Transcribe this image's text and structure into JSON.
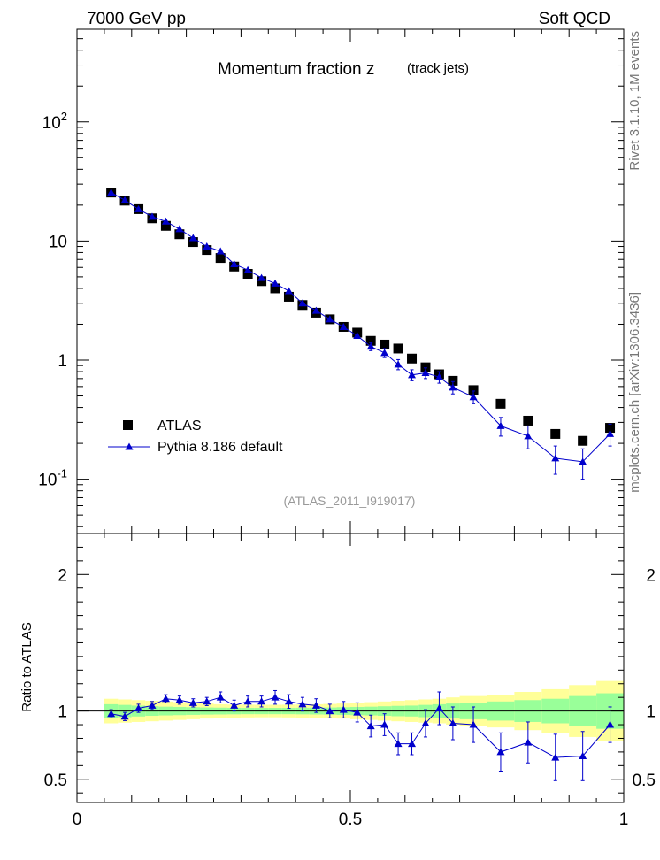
{
  "header": {
    "left": "7000 GeV pp",
    "right": "Soft QCD"
  },
  "title": {
    "main": "Momentum fraction z",
    "sub": "(track jets)"
  },
  "side_text": {
    "top": "Rivet 3.1.10,  1M events",
    "bottom": "mcplots.cern.ch [arXiv:1306.3436]"
  },
  "analysis_label": "(ATLAS_2011_I919017)",
  "ratio_ylabel": "Ratio to ATLAS",
  "colors": {
    "data": "#000000",
    "mc": "#0000cc",
    "band_inner": "#99ff99",
    "band_outer": "#ffff99"
  },
  "chart_data": [
    {
      "type": "scatter",
      "title": "Momentum fraction z",
      "subtitle": "(track jets)",
      "xlim": [
        0,
        1
      ],
      "ylim": [
        0.035,
        600
      ],
      "yscale": "log",
      "yticklabels": [
        "10^-1",
        "1",
        "10",
        "10^2"
      ],
      "legend": {
        "placement": "bottom-left",
        "entries": [
          "ATLAS",
          "Pythia 8.186 default"
        ]
      },
      "series": [
        {
          "name": "ATLAS",
          "marker": "square",
          "x": [
            0.0625,
            0.0875,
            0.1125,
            0.1375,
            0.1625,
            0.1875,
            0.2125,
            0.2375,
            0.2625,
            0.2875,
            0.3125,
            0.3375,
            0.3625,
            0.3875,
            0.4125,
            0.4375,
            0.4625,
            0.4875,
            0.5125,
            0.5375,
            0.5625,
            0.5875,
            0.6125,
            0.6375,
            0.6625,
            0.6875,
            0.725,
            0.775,
            0.825,
            0.875,
            0.925,
            0.975
          ],
          "y": [
            25.5,
            21.8,
            18.5,
            15.5,
            13.4,
            11.4,
            9.8,
            8.4,
            7.2,
            6.1,
            5.3,
            4.6,
            4.0,
            3.4,
            2.9,
            2.5,
            2.2,
            1.9,
            1.7,
            1.45,
            1.35,
            1.25,
            1.03,
            0.87,
            0.76,
            0.67,
            0.56,
            0.43,
            0.31,
            0.24,
            0.21,
            0.27
          ]
        },
        {
          "name": "Pythia 8.186 default",
          "marker": "triangle",
          "x": [
            0.0625,
            0.0875,
            0.1125,
            0.1375,
            0.1625,
            0.1875,
            0.2125,
            0.2375,
            0.2625,
            0.2875,
            0.3125,
            0.3375,
            0.3625,
            0.3875,
            0.4125,
            0.4375,
            0.4625,
            0.4875,
            0.5125,
            0.5375,
            0.5625,
            0.5875,
            0.6125,
            0.6375,
            0.6625,
            0.6875,
            0.725,
            0.775,
            0.825,
            0.875,
            0.925,
            0.975
          ],
          "y": [
            25.5,
            22.0,
            18.5,
            16.0,
            14.6,
            12.6,
            10.6,
            9.0,
            8.2,
            6.4,
            5.7,
            4.9,
            4.4,
            3.8,
            3.0,
            2.6,
            2.2,
            1.9,
            1.6,
            1.3,
            1.15,
            0.92,
            0.75,
            0.78,
            0.72,
            0.59,
            0.49,
            0.28,
            0.23,
            0.15,
            0.14,
            0.24
          ],
          "yerr": [
            0.5,
            0.4,
            0.35,
            0.3,
            0.3,
            0.25,
            0.2,
            0.2,
            0.2,
            0.15,
            0.15,
            0.15,
            0.15,
            0.15,
            0.1,
            0.1,
            0.1,
            0.1,
            0.1,
            0.1,
            0.1,
            0.09,
            0.08,
            0.08,
            0.08,
            0.07,
            0.06,
            0.05,
            0.05,
            0.04,
            0.04,
            0.05
          ]
        }
      ]
    },
    {
      "type": "scatter",
      "ylabel": "Ratio to ATLAS",
      "xlim": [
        0,
        1
      ],
      "ylim": [
        0.33,
        2.3
      ],
      "xticklabels": [
        "0",
        "0.5",
        "1"
      ],
      "yticklabels": [
        "0.5",
        "1",
        "2"
      ],
      "band_edges": [
        0.05,
        0.075,
        0.1,
        0.125,
        0.15,
        0.175,
        0.2,
        0.225,
        0.25,
        0.275,
        0.3,
        0.325,
        0.35,
        0.375,
        0.4,
        0.425,
        0.45,
        0.475,
        0.5,
        0.525,
        0.55,
        0.575,
        0.6,
        0.625,
        0.65,
        0.675,
        0.7,
        0.75,
        0.8,
        0.85,
        0.9,
        0.95,
        1.0
      ],
      "band_inner": [
        0.05,
        0.045,
        0.04,
        0.035,
        0.032,
        0.03,
        0.028,
        0.026,
        0.025,
        0.024,
        0.023,
        0.023,
        0.023,
        0.023,
        0.024,
        0.025,
        0.026,
        0.028,
        0.03,
        0.032,
        0.035,
        0.038,
        0.04,
        0.045,
        0.05,
        0.055,
        0.06,
        0.07,
        0.08,
        0.09,
        0.11,
        0.13
      ],
      "band_outer": [
        0.09,
        0.085,
        0.08,
        0.075,
        0.07,
        0.065,
        0.06,
        0.055,
        0.05,
        0.048,
        0.047,
        0.046,
        0.046,
        0.047,
        0.048,
        0.05,
        0.052,
        0.055,
        0.06,
        0.065,
        0.07,
        0.075,
        0.08,
        0.085,
        0.09,
        0.1,
        0.11,
        0.12,
        0.14,
        0.16,
        0.19,
        0.22
      ],
      "series": [
        {
          "name": "Pythia 8.186 default",
          "x": [
            0.0625,
            0.0875,
            0.1125,
            0.1375,
            0.1625,
            0.1875,
            0.2125,
            0.2375,
            0.2625,
            0.2875,
            0.3125,
            0.3375,
            0.3625,
            0.3875,
            0.4125,
            0.4375,
            0.4625,
            0.4875,
            0.5125,
            0.5375,
            0.5625,
            0.5875,
            0.6125,
            0.6375,
            0.6625,
            0.6875,
            0.725,
            0.775,
            0.825,
            0.875,
            0.925,
            0.975
          ],
          "y": [
            0.98,
            0.96,
            1.02,
            1.04,
            1.09,
            1.08,
            1.06,
            1.07,
            1.1,
            1.04,
            1.07,
            1.07,
            1.1,
            1.07,
            1.05,
            1.04,
            1.0,
            1.01,
            0.99,
            0.89,
            0.9,
            0.76,
            0.76,
            0.91,
            1.02,
            0.91,
            0.9,
            0.7,
            0.77,
            0.66,
            0.67,
            0.9
          ],
          "yerr": [
            0.03,
            0.03,
            0.03,
            0.03,
            0.03,
            0.03,
            0.03,
            0.03,
            0.04,
            0.04,
            0.04,
            0.04,
            0.05,
            0.05,
            0.05,
            0.05,
            0.05,
            0.06,
            0.07,
            0.08,
            0.08,
            0.08,
            0.08,
            0.1,
            0.12,
            0.12,
            0.13,
            0.14,
            0.15,
            0.17,
            0.18,
            0.13
          ]
        }
      ]
    }
  ]
}
